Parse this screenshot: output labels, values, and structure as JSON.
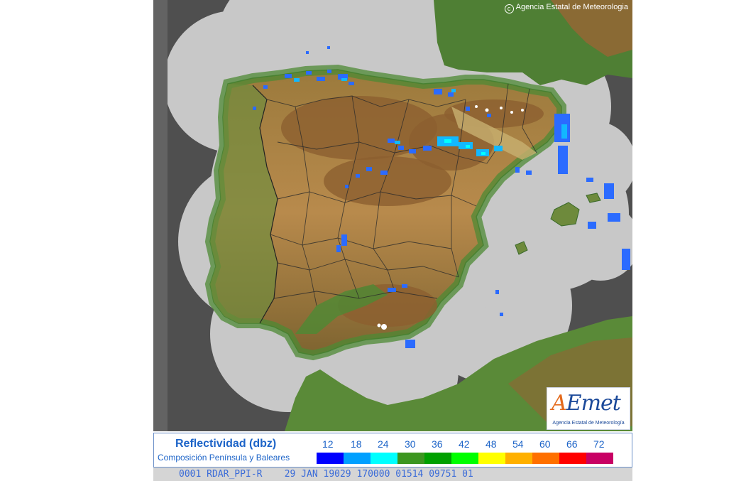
{
  "copyright": "Agencia Estatal de Meteorologia",
  "logo": {
    "mark_a": "A",
    "mark_rest": "Emet",
    "subtitle": "Agencia Estatal de Meteorología"
  },
  "legend": {
    "title": "Reflectividad (dbz)",
    "subtitle": "Composición Península y Baleares",
    "steps": [
      {
        "label": "12",
        "color": "#0000ff"
      },
      {
        "label": "18",
        "color": "#00a0ff"
      },
      {
        "label": "24",
        "color": "#00ffff"
      },
      {
        "label": "30",
        "color": "#3c9620"
      },
      {
        "label": "36",
        "color": "#00a000"
      },
      {
        "label": "42",
        "color": "#00ff00"
      },
      {
        "label": "48",
        "color": "#ffff00"
      },
      {
        "label": "54",
        "color": "#ffb000"
      },
      {
        "label": "60",
        "color": "#ff7000"
      },
      {
        "label": "66",
        "color": "#ff0000"
      },
      {
        "label": "72",
        "color": "#c80064"
      }
    ]
  },
  "status_line": "0001 RDAR_PPI-R    29 JAN 19029 170000 01514 09751 01",
  "map_colors": {
    "sea": "#636363",
    "coverage": "#c8c8c8",
    "outside": "#4f4f4f",
    "land_low": "#3f7d2f",
    "land_mid": "#c8a75a",
    "land_high": "#8a5a2a",
    "echo_light": "#2b6bff",
    "echo_med": "#12b8ff"
  }
}
